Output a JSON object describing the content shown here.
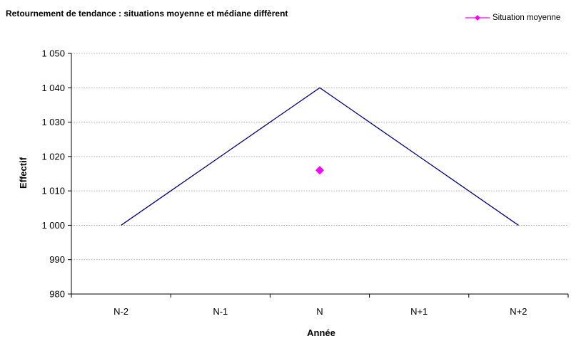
{
  "chart_data": {
    "type": "line",
    "title": "Retournement de tendance : situations moyenne et médiane diffèrent",
    "xlabel": "Année",
    "ylabel": "Effectif",
    "categories": [
      "N-2",
      "N-1",
      "N",
      "N+1",
      "N+2"
    ],
    "ylim": [
      980,
      1050
    ],
    "yticks": [
      980,
      990,
      1000,
      1010,
      1020,
      1030,
      1040,
      1050
    ],
    "ytick_labels": [
      "980",
      "990",
      "1 000",
      "1 010",
      "1 020",
      "1 030",
      "1 040",
      "1 050"
    ],
    "grid": "horizontal dotted",
    "legend_position": "top-right",
    "series": [
      {
        "values": [
          1000,
          1020,
          1040,
          1020,
          1000
        ],
        "color": "#000080",
        "marker": "none"
      },
      {
        "name": "Situation moyenne",
        "values": [
          null,
          null,
          1016,
          null,
          null
        ],
        "color": "#FF00FF",
        "marker": "diamond"
      }
    ]
  }
}
